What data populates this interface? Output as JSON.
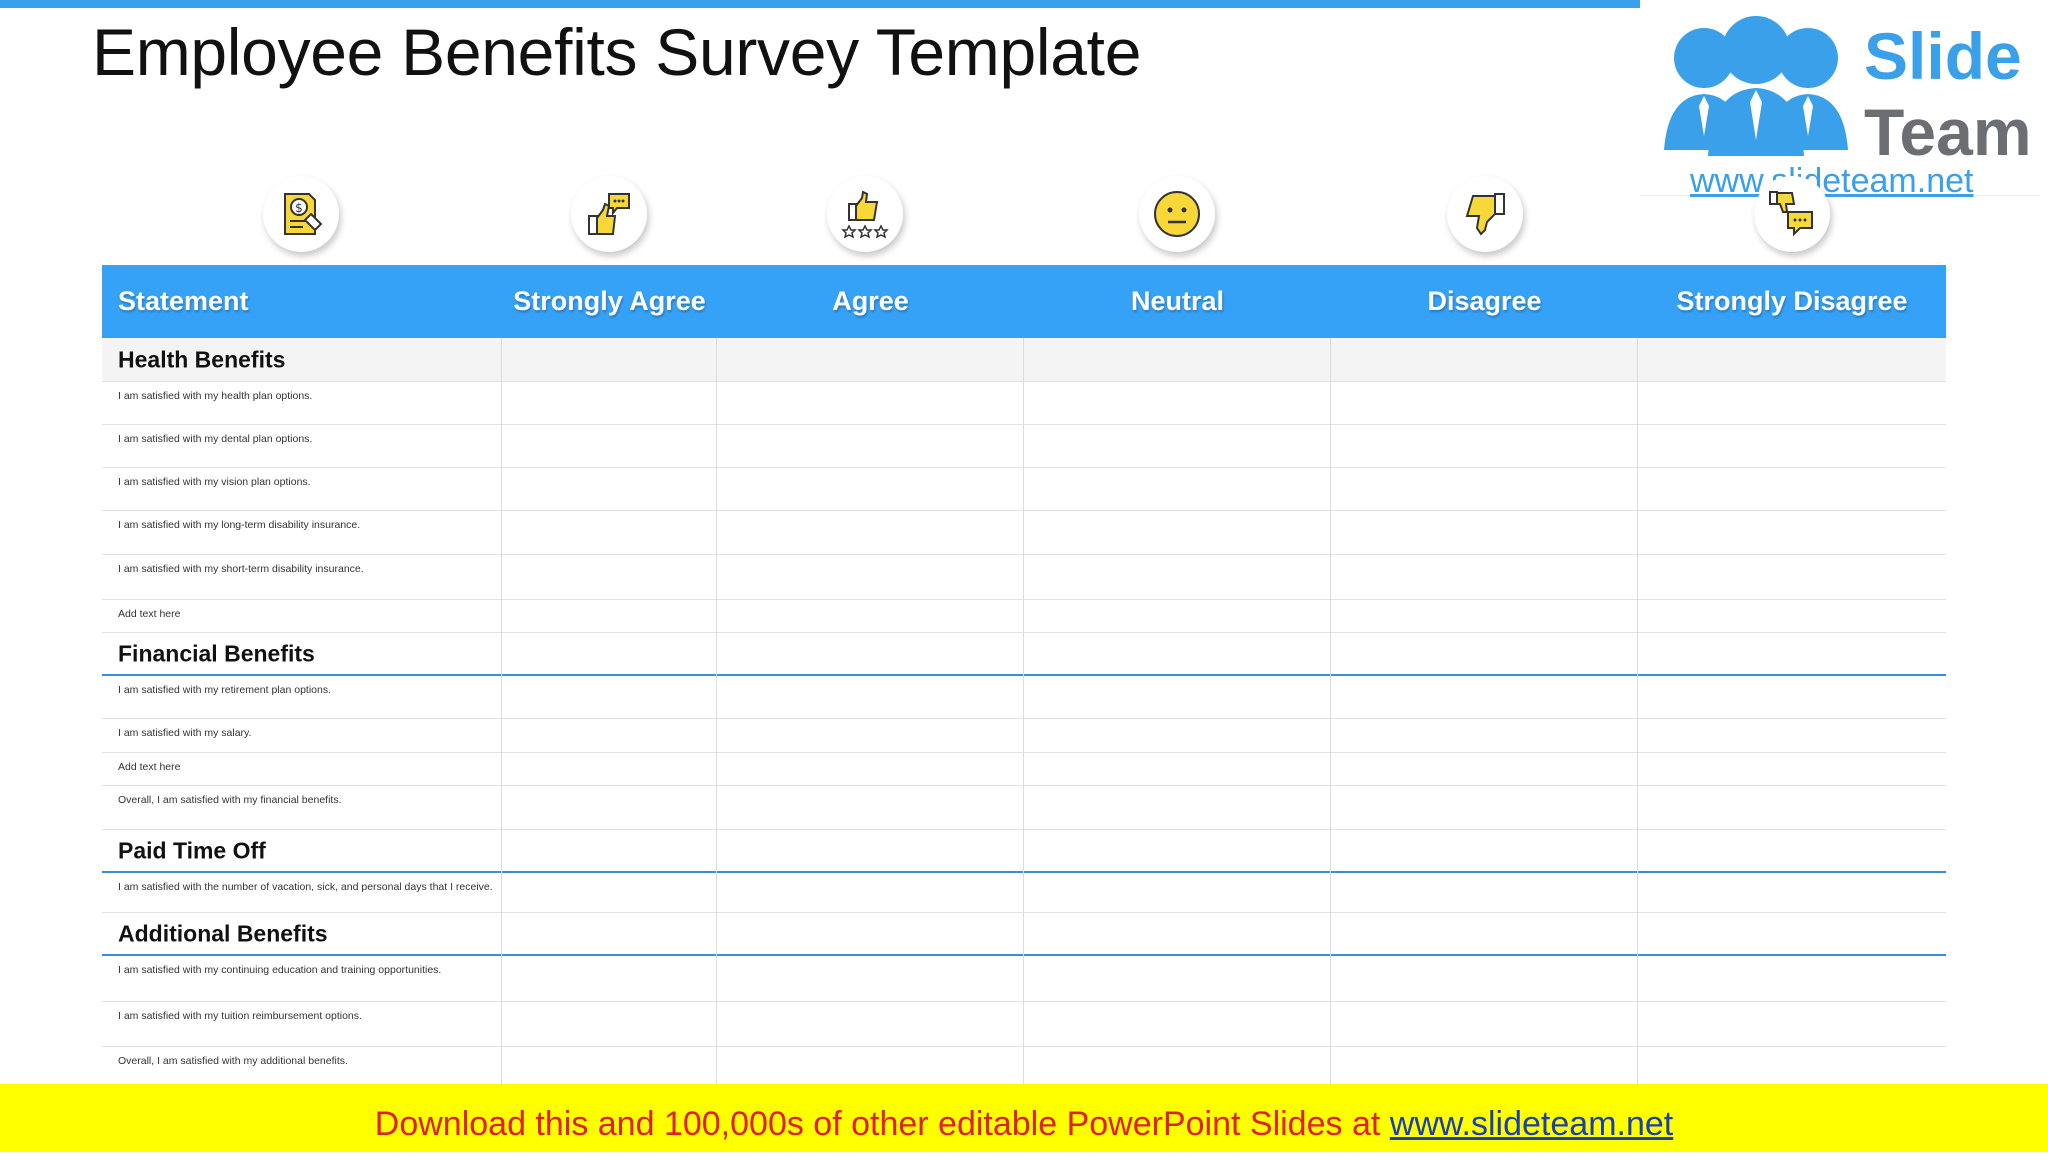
{
  "title": "Employee Benefits Survey Template",
  "logo": {
    "word1": "Slide",
    "word2": "Team",
    "url": "www.slideteam.net"
  },
  "icons": [
    "document-dollar-icon",
    "thumbs-up-speech-icon",
    "thumbs-up-stars-icon",
    "neutral-face-icon",
    "thumbs-down-icon",
    "thumbs-down-speech-icon"
  ],
  "colors": {
    "header": "#35a2f8",
    "accent": "#3aa0e9",
    "icon_yellow": "#f7d838",
    "footer_bg": "#ffff00",
    "footer_text": "#e02020"
  },
  "table": {
    "headers": [
      "Statement",
      "Strongly Agree",
      "Agree",
      "Neutral",
      "Disagree",
      "Strongly Disagree"
    ],
    "sections": [
      {
        "name": "Health Benefits",
        "items": [
          "I am satisfied with my health plan options.",
          "I am satisfied with my dental plan options.",
          "I am satisfied with my vision plan options.",
          "I am satisfied with my long-term disability insurance.",
          "I am satisfied with my short-term disability insurance.",
          "Add text here"
        ]
      },
      {
        "name": "Financial Benefits",
        "items": [
          "I am satisfied with my retirement plan options.",
          "I am satisfied with my salary.",
          "Add text here",
          "Overall, I am satisfied with my financial benefits."
        ]
      },
      {
        "name": "Paid Time Off",
        "items": [
          "I am satisfied with the number of vacation, sick, and personal days that I receive."
        ]
      },
      {
        "name": "Additional Benefits",
        "items": [
          "I am satisfied with my continuing education and training opportunities.",
          "I am satisfied with my tuition reimbursement options.",
          "Overall, I am satisfied with my additional benefits."
        ]
      }
    ]
  },
  "footer": {
    "text": "Download this and 100,000s of other editable PowerPoint Slides at ",
    "link": "www.slideteam.net"
  }
}
